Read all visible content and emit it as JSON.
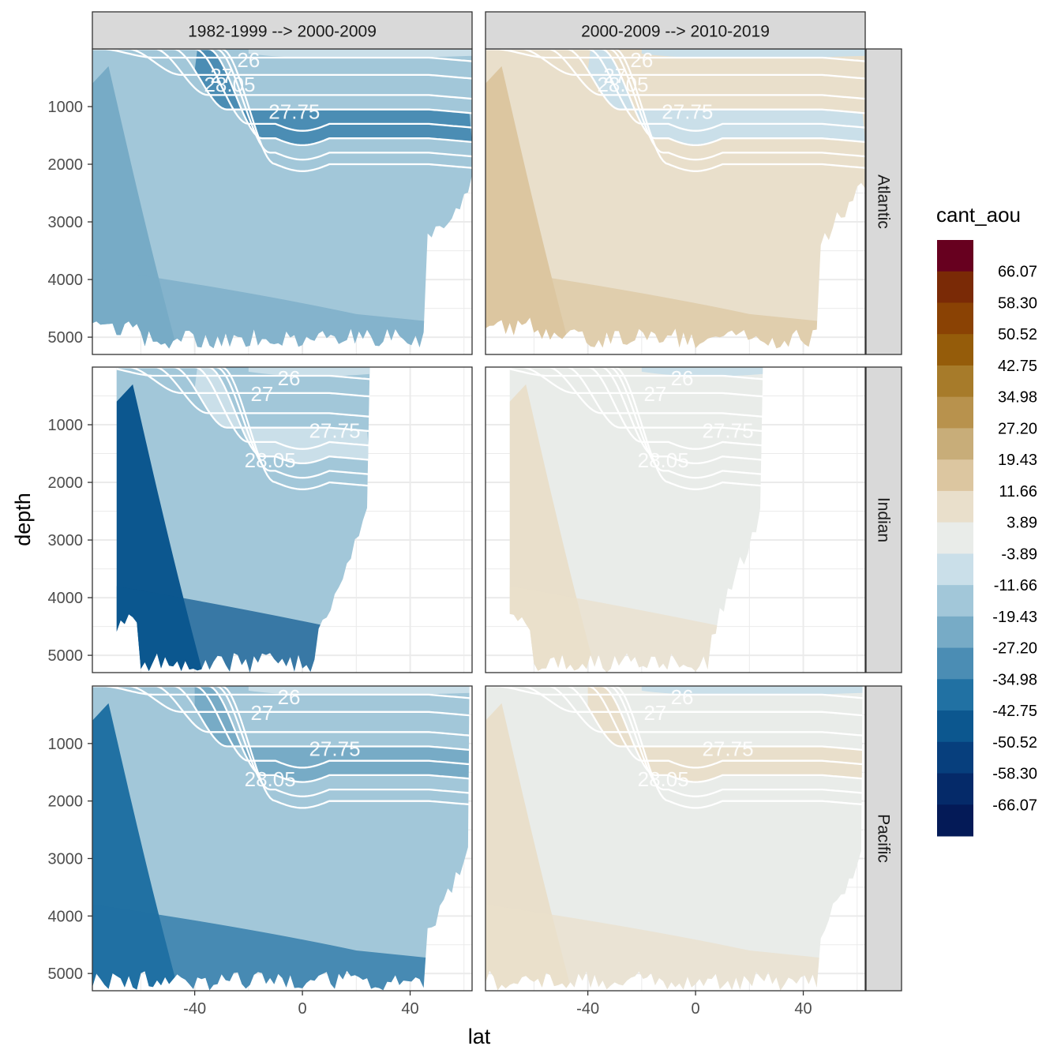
{
  "chart_data": {
    "type": "heatmap",
    "subtype": "faceted filled-contour depth sections",
    "xlabel": "lat",
    "ylabel": "depth",
    "xlim": [
      -78,
      63
    ],
    "ylim": [
      5300,
      0
    ],
    "x_ticks": [
      -40,
      0,
      40
    ],
    "y_ticks": [
      1000,
      2000,
      3000,
      4000,
      5000
    ],
    "column_facets": [
      "1982-1999 --> 2000-2009",
      "2000-2009 --> 2010-2019"
    ],
    "row_facets": [
      "Atlantic",
      "Indian",
      "Pacific"
    ],
    "basin_lat_range": {
      "Atlantic": [
        -78,
        63
      ],
      "Indian": [
        -69,
        25
      ],
      "Pacific": [
        -78,
        62
      ]
    },
    "isopycnal_labels": [
      "26",
      "27",
      "27.75",
      "28.05"
    ],
    "legend": {
      "title": "cant_aou",
      "labels": [
        "66.07",
        "58.30",
        "50.52",
        "42.75",
        "34.98",
        "27.20",
        "19.43",
        "11.66",
        "3.89",
        "-3.89",
        "-11.66",
        "-19.43",
        "-27.20",
        "-34.98",
        "-42.75",
        "-50.52",
        "-58.30",
        "-66.07"
      ],
      "colors": [
        "#67001f",
        "#7a2a06",
        "#8a4204",
        "#955c0a",
        "#a77b2a",
        "#b8924d",
        "#c8ad79",
        "#dcc6a0",
        "#e9dfcb",
        "#e9ece9",
        "#cadfe9",
        "#a2c7d9",
        "#77abc6",
        "#4b8db4",
        "#2171a3",
        "#0c578f",
        "#073f7d",
        "#052a69",
        "#041a57"
      ]
    },
    "panels": [
      {
        "column": "1982-1999 --> 2000-2009",
        "basin": "Atlantic",
        "background_class": "-11.66",
        "deep_core_class": "-19.43",
        "thermocline_class": "-27.20"
      },
      {
        "column": "2000-2009 --> 2010-2019",
        "basin": "Atlantic",
        "background_class": "11.66",
        "deep_core_class": "19.43",
        "thermocline_class": "-3.89"
      },
      {
        "column": "1982-1999 --> 2000-2009",
        "basin": "Indian",
        "background_class": "-11.66",
        "deep_core_class": "-42.75",
        "thermocline_class": "-3.89"
      },
      {
        "column": "2000-2009 --> 2010-2019",
        "basin": "Indian",
        "background_class": "3.89",
        "deep_core_class": "11.66",
        "thermocline_class": "3.89"
      },
      {
        "column": "1982-1999 --> 2000-2009",
        "basin": "Pacific",
        "background_class": "-11.66",
        "deep_core_class": "-34.98",
        "thermocline_class": "-19.43"
      },
      {
        "column": "2000-2009 --> 2010-2019",
        "basin": "Pacific",
        "background_class": "3.89",
        "deep_core_class": "11.66",
        "thermocline_class": "11.66"
      }
    ]
  }
}
